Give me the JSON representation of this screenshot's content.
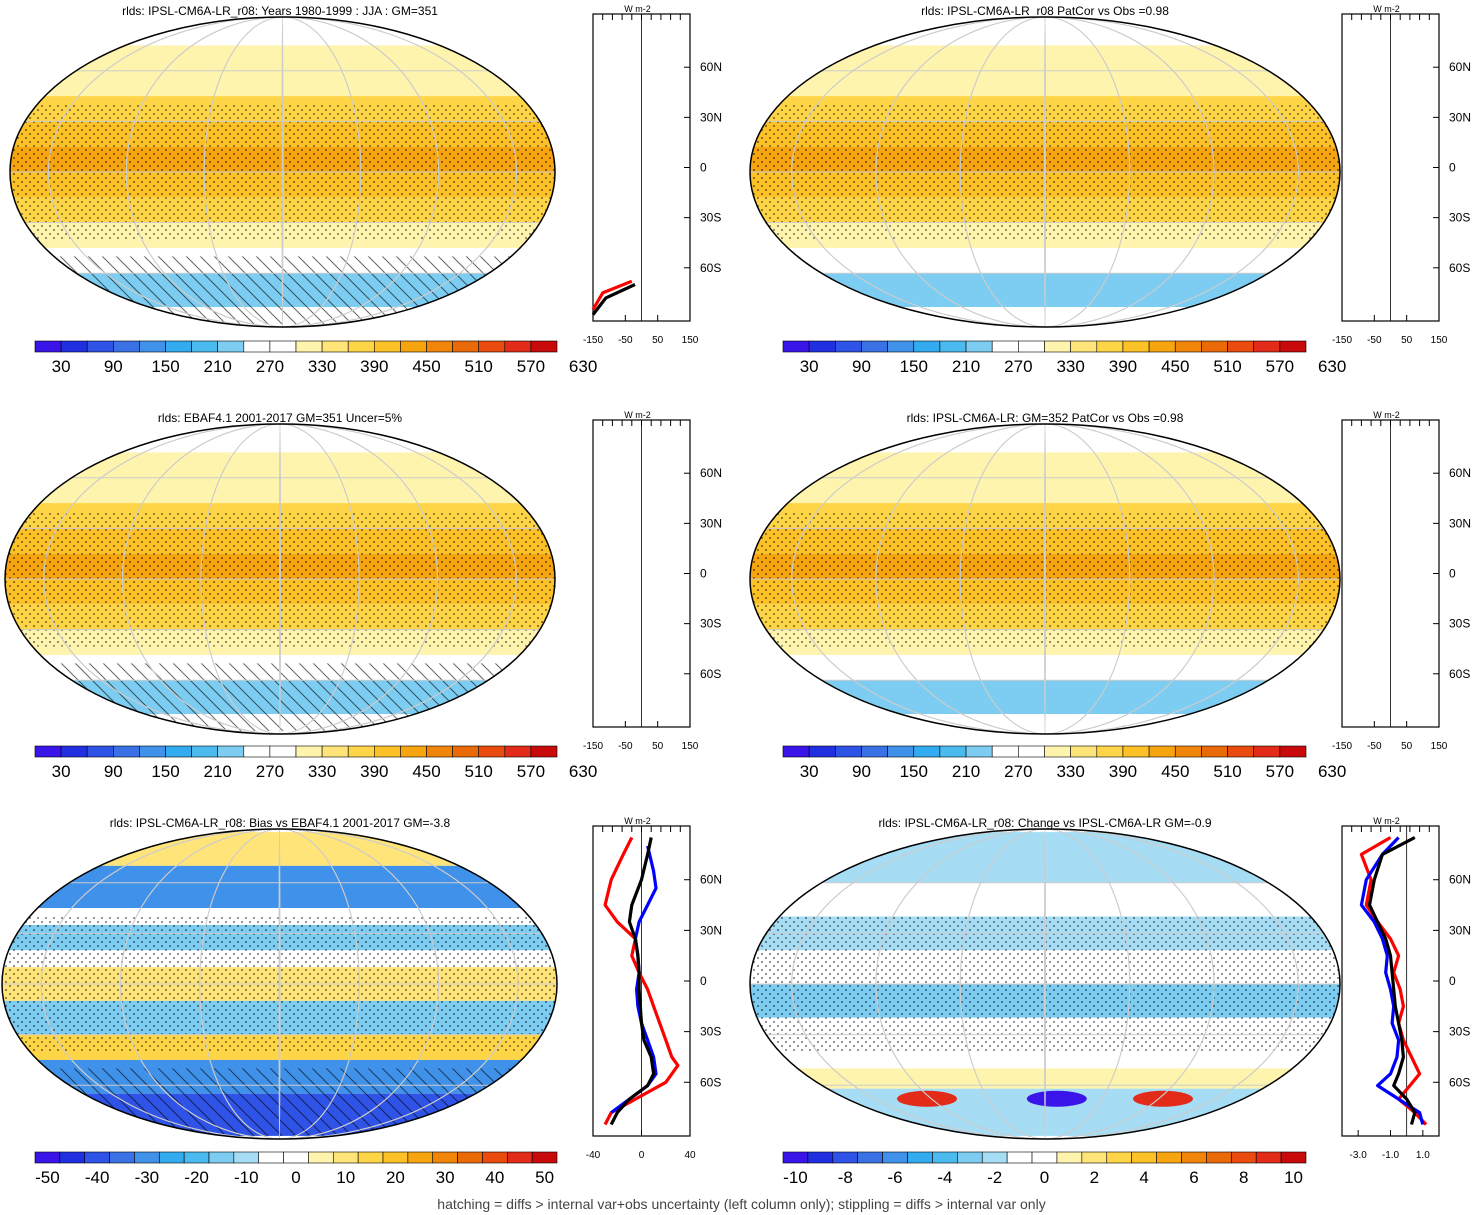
{
  "footer": "hatching = diffs > internal var+obs uncertainty (left column only); stippling = diffs > internal var only",
  "profile_unit": "W m-2",
  "lat_labels": [
    "60N",
    "30N",
    "0",
    "30S",
    "60S"
  ],
  "palettes": {
    "abs": [
      "#3b14ea",
      "#2030e0",
      "#2f53e6",
      "#3a72e6",
      "#3f91ea",
      "#32abf0",
      "#4bbbef",
      "#7ccdf1",
      "#ffffff",
      "#ffffff",
      "#fff4ad",
      "#ffe47a",
      "#ffd548",
      "#fbc126",
      "#f6a50f",
      "#f08509",
      "#ea6a08",
      "#ea4c10",
      "#e32b1a",
      "#c90a0a"
    ],
    "bias": [
      "#3b14ea",
      "#2030e0",
      "#2f53e6",
      "#3a72e6",
      "#3f91ea",
      "#32abf0",
      "#4bbbef",
      "#7ccdf1",
      "#a6dcf4",
      "#ffffff",
      "#ffffff",
      "#fff4ad",
      "#ffe47a",
      "#ffd548",
      "#fbc126",
      "#f6a50f",
      "#f08509",
      "#ea6a08",
      "#ea4c10",
      "#e32b1a",
      "#c90a0a"
    ],
    "line_colors": {
      "model": "#ff0000",
      "obs": "#0000ff",
      "ens": "#000000"
    }
  },
  "panels": [
    {
      "id": "model-mean",
      "title": "rlds: IPSL-CM6A-LR_r08: Years 1980-1999 : JJA : GM=351",
      "kind": "abs",
      "colorbar_labels": [
        "30",
        "90",
        "150",
        "210",
        "270",
        "330",
        "390",
        "450",
        "510",
        "570",
        "630"
      ],
      "profile_ticks": [
        "-150",
        "-50",
        "50",
        "150"
      ]
    },
    {
      "id": "model-patcor",
      "title": "rlds: IPSL-CM6A-LR_r08 PatCor vs Obs =0.98",
      "kind": "abs",
      "colorbar_labels": [
        "30",
        "90",
        "150",
        "210",
        "270",
        "330",
        "390",
        "450",
        "510",
        "570",
        "630"
      ],
      "profile_ticks": [
        "-150",
        "-50",
        "50",
        "150"
      ]
    },
    {
      "id": "obs",
      "title": "rlds: EBAF4.1 2001-2017 GM=351 Uncer=5%",
      "kind": "abs",
      "colorbar_labels": [
        "30",
        "90",
        "150",
        "210",
        "270",
        "330",
        "390",
        "450",
        "510",
        "570",
        "630"
      ],
      "profile_ticks": [
        "-150",
        "-50",
        "50",
        "150"
      ]
    },
    {
      "id": "ensemble",
      "title": "rlds: IPSL-CM6A-LR: GM=352 PatCor vs Obs =0.98",
      "kind": "abs",
      "colorbar_labels": [
        "30",
        "90",
        "150",
        "210",
        "270",
        "330",
        "390",
        "450",
        "510",
        "570",
        "630"
      ],
      "profile_ticks": [
        "-150",
        "-50",
        "50",
        "150"
      ]
    },
    {
      "id": "bias",
      "title": "rlds: IPSL-CM6A-LR_r08: Bias vs EBAF4.1 2001-2017 GM=-3.8",
      "kind": "bias",
      "colorbar_labels": [
        "-50",
        "-40",
        "-30",
        "-20",
        "-10",
        "0",
        "10",
        "20",
        "30",
        "40",
        "50"
      ],
      "profile_ticks": [
        "-40",
        "0",
        "40"
      ]
    },
    {
      "id": "change",
      "title": "rlds: IPSL-CM6A-LR_r08: Change vs IPSL-CM6A-LR GM=-0.9",
      "kind": "bias",
      "colorbar_labels": [
        "-10",
        "-8",
        "-6",
        "-4",
        "-2",
        "0",
        "2",
        "4",
        "6",
        "8",
        "10"
      ],
      "profile_ticks": [
        "-3.0",
        "-1.0",
        "1.0"
      ]
    }
  ],
  "chart_data": [
    {
      "type": "heatmap",
      "title": "rlds: IPSL-CM6A-LR_r08: Years 1980-1999 : JJA : GM=351",
      "lat": [
        -80,
        -60,
        -45,
        -30,
        -15,
        0,
        15,
        30,
        45,
        60,
        75
      ],
      "zonal_mean": [
        180,
        250,
        300,
        350,
        390,
        420,
        420,
        400,
        350,
        300,
        300
      ],
      "colorbar": {
        "min": 0,
        "max": 660,
        "step": 30
      },
      "profile_lines": [
        {
          "name": "model",
          "color": "red",
          "x": [
            -150,
            -120,
            -30
          ],
          "lat": [
            -85,
            -75,
            -68
          ]
        },
        {
          "name": "ensemble",
          "color": "black",
          "x": [
            -150,
            -110,
            -20
          ],
          "lat": [
            -88,
            -78,
            -70
          ]
        }
      ]
    },
    {
      "type": "heatmap",
      "title": "rlds: IPSL-CM6A-LR_r08 PatCor vs Obs =0.98",
      "lat": [
        -80,
        -60,
        -45,
        -30,
        -15,
        0,
        15,
        30,
        45,
        60,
        75
      ],
      "zonal_mean": [
        180,
        250,
        300,
        350,
        390,
        420,
        420,
        400,
        350,
        300,
        300
      ],
      "colorbar": {
        "min": 0,
        "max": 660,
        "step": 30
      },
      "pattern_correlation": 0.98
    },
    {
      "type": "heatmap",
      "title": "rlds: EBAF4.1 2001-2017 GM=351 Uncer=5%",
      "lat": [
        -80,
        -60,
        -45,
        -30,
        -15,
        0,
        15,
        30,
        45,
        60,
        75
      ],
      "zonal_mean": [
        180,
        250,
        300,
        350,
        390,
        420,
        420,
        400,
        350,
        300,
        300
      ],
      "colorbar": {
        "min": 0,
        "max": 660,
        "step": 30
      },
      "global_mean": 351
    },
    {
      "type": "heatmap",
      "title": "rlds: IPSL-CM6A-LR: GM=352 PatCor vs Obs =0.98",
      "lat": [
        -80,
        -60,
        -45,
        -30,
        -15,
        0,
        15,
        30,
        45,
        60,
        75
      ],
      "zonal_mean": [
        180,
        250,
        300,
        350,
        390,
        420,
        420,
        400,
        350,
        300,
        300
      ],
      "colorbar": {
        "min": 0,
        "max": 660,
        "step": 30
      },
      "global_mean": 352
    },
    {
      "type": "line",
      "title": "rlds: IPSL-CM6A-LR_r08: Bias vs EBAF4.1 2001-2017 GM=-3.8",
      "xlim": [
        -40,
        40
      ],
      "series": [
        {
          "name": "model",
          "color": "red",
          "x": [
            -8,
            -15,
            -25,
            -30,
            -20,
            -5,
            -8,
            -2,
            5,
            10,
            15,
            20,
            25,
            30,
            20,
            -5,
            -25,
            -30
          ],
          "lat": [
            85,
            75,
            60,
            45,
            35,
            25,
            15,
            5,
            -5,
            -15,
            -25,
            -35,
            -45,
            -50,
            -60,
            -70,
            -78,
            -85
          ]
        },
        {
          "name": "obs",
          "color": "blue",
          "x": [
            5,
            10,
            12,
            5,
            -2,
            -5,
            -3,
            -2,
            -4,
            -3,
            0,
            5,
            10,
            12,
            5,
            -10,
            -25
          ],
          "lat": [
            80,
            65,
            55,
            45,
            35,
            25,
            15,
            5,
            -5,
            -15,
            -25,
            -35,
            -45,
            -55,
            -62,
            -70,
            -78
          ]
        },
        {
          "name": "ensemble",
          "color": "black",
          "x": [
            8,
            5,
            0,
            -8,
            -10,
            -5,
            -3,
            -2,
            -2,
            -1,
            0,
            2,
            8,
            10,
            5,
            -10,
            -20,
            -25
          ],
          "lat": [
            85,
            75,
            60,
            45,
            35,
            25,
            15,
            5,
            -5,
            -15,
            -25,
            -35,
            -45,
            -55,
            -62,
            -70,
            -78,
            -85
          ]
        }
      ]
    },
    {
      "type": "line",
      "title": "rlds: IPSL-CM6A-LR_r08: Change vs IPSL-CM6A-LR GM=-0.9",
      "xlim": [
        -4,
        2
      ],
      "series": [
        {
          "name": "model",
          "color": "red",
          "x": [
            -1.0,
            -2.8,
            -2.2,
            -2.5,
            -1.8,
            -1.0,
            -0.5,
            -0.8,
            -0.4,
            -0.2,
            -0.5,
            -0.2,
            0.3,
            0.8,
            0.2,
            -0.5,
            0.5,
            1.2
          ],
          "lat": [
            85,
            75,
            60,
            45,
            35,
            25,
            15,
            5,
            -5,
            -15,
            -25,
            -35,
            -45,
            -55,
            -62,
            -70,
            -78,
            -85
          ]
        },
        {
          "name": "obs",
          "color": "blue",
          "x": [
            -0.5,
            -1.5,
            -2.5,
            -2.8,
            -2.0,
            -1.5,
            -1.2,
            -1.3,
            -1.0,
            -0.8,
            -0.9,
            -0.5,
            -0.6,
            -1.0,
            -1.8,
            -0.5,
            0.8,
            1.0
          ],
          "lat": [
            85,
            75,
            60,
            45,
            35,
            25,
            15,
            5,
            -5,
            -15,
            -25,
            -35,
            -45,
            -55,
            -62,
            -70,
            -78,
            -85
          ]
        },
        {
          "name": "ensemble",
          "color": "black",
          "x": [
            0.5,
            -1.5,
            -2.0,
            -2.3,
            -1.8,
            -1.3,
            -1.0,
            -0.9,
            -0.8,
            -0.7,
            -0.5,
            -0.3,
            -0.2,
            -0.5,
            -0.8,
            0.0,
            0.5,
            0.3
          ],
          "lat": [
            85,
            75,
            60,
            45,
            35,
            25,
            15,
            5,
            -5,
            -15,
            -25,
            -35,
            -45,
            -55,
            -62,
            -70,
            -78,
            -85
          ]
        }
      ]
    }
  ]
}
